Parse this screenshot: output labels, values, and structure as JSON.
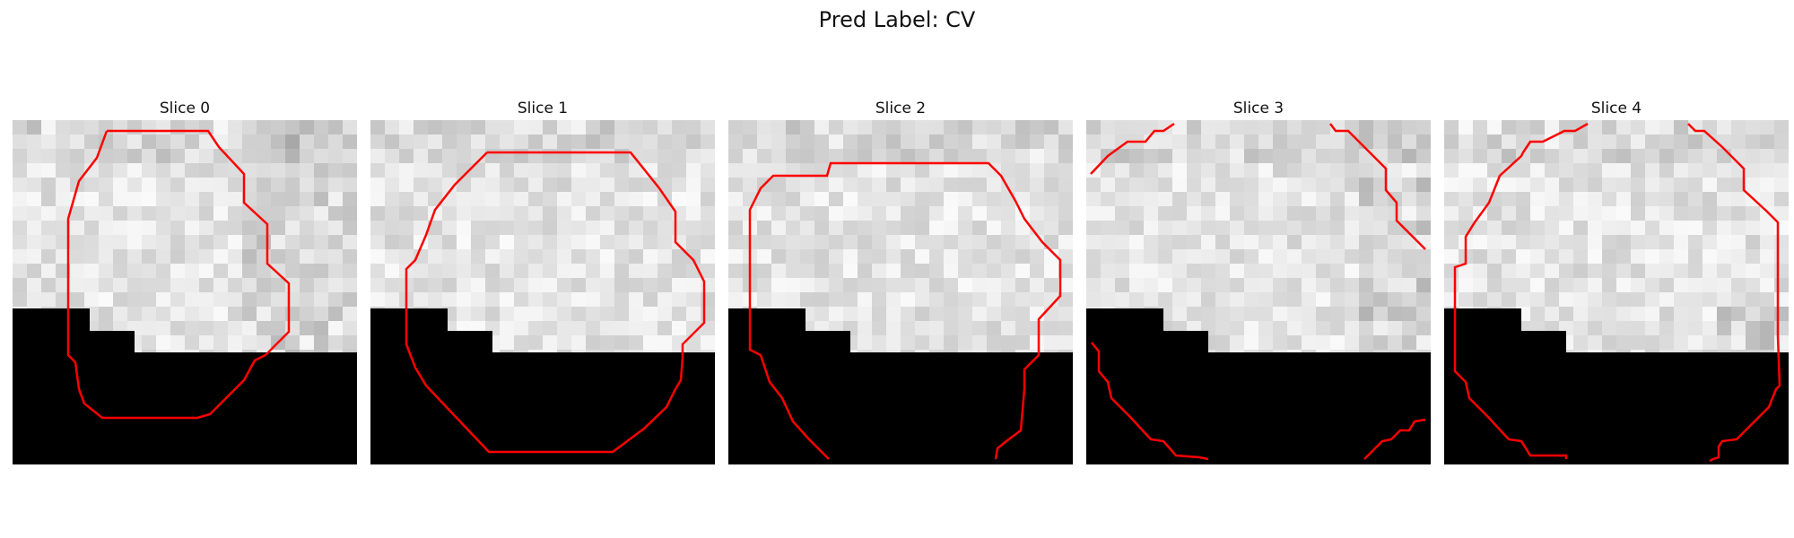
{
  "suptitle": "Pred Label: CV",
  "panels": [
    {
      "title": "Slice 0"
    },
    {
      "title": "Slice 1"
    },
    {
      "title": "Slice 2"
    },
    {
      "title": "Slice 3"
    },
    {
      "title": "Slice 4"
    }
  ],
  "colors": {
    "contour": "#ff0000",
    "mask": "#000000"
  }
}
